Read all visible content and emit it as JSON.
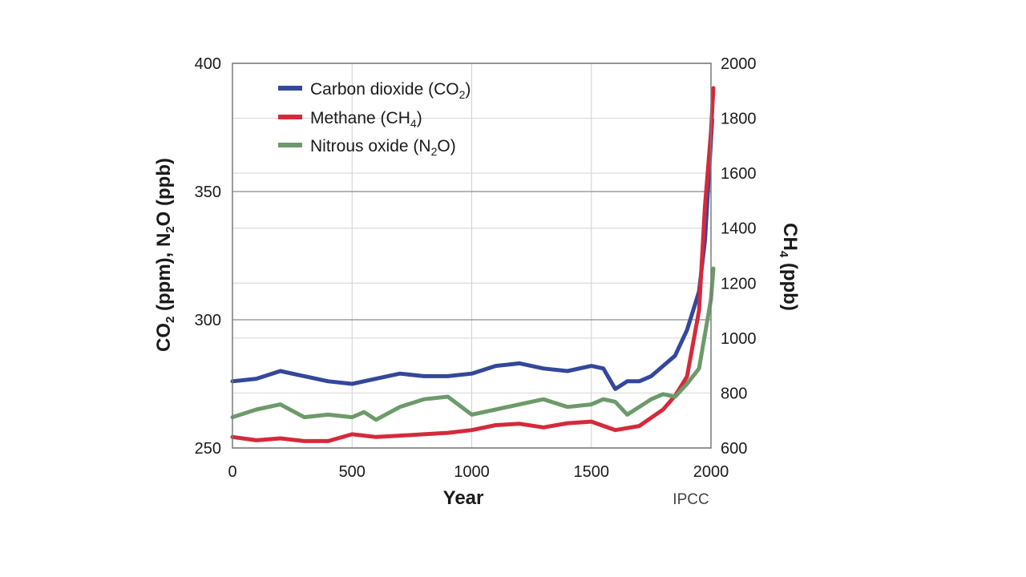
{
  "chart_data": {
    "type": "line",
    "x_axis": {
      "label": "Year",
      "range": [
        0,
        2000
      ],
      "ticks": [
        "0",
        "500",
        "1000",
        "1500",
        "2000"
      ]
    },
    "y_axis_left": {
      "label_parts": [
        "CO",
        "2",
        " (ppm), N",
        "2",
        "O (ppb)"
      ],
      "range": [
        250,
        400
      ],
      "ticks": [
        "250",
        "300",
        "350",
        "400"
      ]
    },
    "y_axis_right": {
      "label_parts": [
        "CH",
        "4",
        " (ppb)"
      ],
      "range": [
        600,
        2000
      ],
      "ticks": [
        "600",
        "800",
        "1000",
        "1200",
        "1400",
        "1600",
        "1800",
        "2000"
      ]
    },
    "grid": true,
    "legend_position": "top-left",
    "source": "IPCC",
    "series": [
      {
        "id": "co2",
        "legend_parts": [
          "Carbon dioxide (CO",
          "2",
          ")"
        ],
        "axis": "left",
        "color": "#34489a",
        "points": [
          [
            0,
            276
          ],
          [
            100,
            277
          ],
          [
            200,
            280
          ],
          [
            300,
            278
          ],
          [
            400,
            276
          ],
          [
            500,
            275
          ],
          [
            600,
            277
          ],
          [
            700,
            279
          ],
          [
            800,
            278
          ],
          [
            900,
            278
          ],
          [
            1000,
            279
          ],
          [
            1100,
            282
          ],
          [
            1200,
            283
          ],
          [
            1300,
            281
          ],
          [
            1400,
            280
          ],
          [
            1500,
            282
          ],
          [
            1550,
            281
          ],
          [
            1600,
            273
          ],
          [
            1650,
            276
          ],
          [
            1700,
            276
          ],
          [
            1750,
            278
          ],
          [
            1800,
            282
          ],
          [
            1850,
            286
          ],
          [
            1900,
            296
          ],
          [
            1950,
            311
          ],
          [
            1975,
            331
          ],
          [
            2000,
            370
          ],
          [
            2005,
            378
          ]
        ]
      },
      {
        "id": "ch4",
        "legend_parts": [
          "Methane (CH",
          "4",
          ")"
        ],
        "axis": "right",
        "color": "#d42a3c",
        "points": [
          [
            0,
            640
          ],
          [
            100,
            628
          ],
          [
            200,
            635
          ],
          [
            300,
            625
          ],
          [
            400,
            625
          ],
          [
            500,
            650
          ],
          [
            600,
            640
          ],
          [
            700,
            645
          ],
          [
            800,
            650
          ],
          [
            900,
            655
          ],
          [
            1000,
            665
          ],
          [
            1100,
            683
          ],
          [
            1200,
            688
          ],
          [
            1300,
            675
          ],
          [
            1400,
            690
          ],
          [
            1500,
            696
          ],
          [
            1600,
            665
          ],
          [
            1700,
            680
          ],
          [
            1750,
            710
          ],
          [
            1800,
            740
          ],
          [
            1850,
            790
          ],
          [
            1900,
            860
          ],
          [
            1950,
            1100
          ],
          [
            1975,
            1480
          ],
          [
            2000,
            1750
          ],
          [
            2010,
            1910
          ]
        ]
      },
      {
        "id": "n2o",
        "legend_parts": [
          "Nitrous oxide (N",
          "2",
          "O)"
        ],
        "axis": "left",
        "color": "#6d9a6a",
        "points": [
          [
            0,
            262
          ],
          [
            100,
            265
          ],
          [
            200,
            267
          ],
          [
            300,
            262
          ],
          [
            400,
            263
          ],
          [
            500,
            262
          ],
          [
            550,
            264
          ],
          [
            600,
            261
          ],
          [
            700,
            266
          ],
          [
            800,
            269
          ],
          [
            900,
            270
          ],
          [
            1000,
            263
          ],
          [
            1100,
            265
          ],
          [
            1200,
            267
          ],
          [
            1300,
            269
          ],
          [
            1400,
            266
          ],
          [
            1500,
            267
          ],
          [
            1550,
            269
          ],
          [
            1600,
            268
          ],
          [
            1650,
            263
          ],
          [
            1700,
            266
          ],
          [
            1750,
            269
          ],
          [
            1800,
            271
          ],
          [
            1850,
            270
          ],
          [
            1900,
            275
          ],
          [
            1950,
            281
          ],
          [
            2000,
            308
          ],
          [
            2010,
            320
          ]
        ]
      }
    ]
  }
}
